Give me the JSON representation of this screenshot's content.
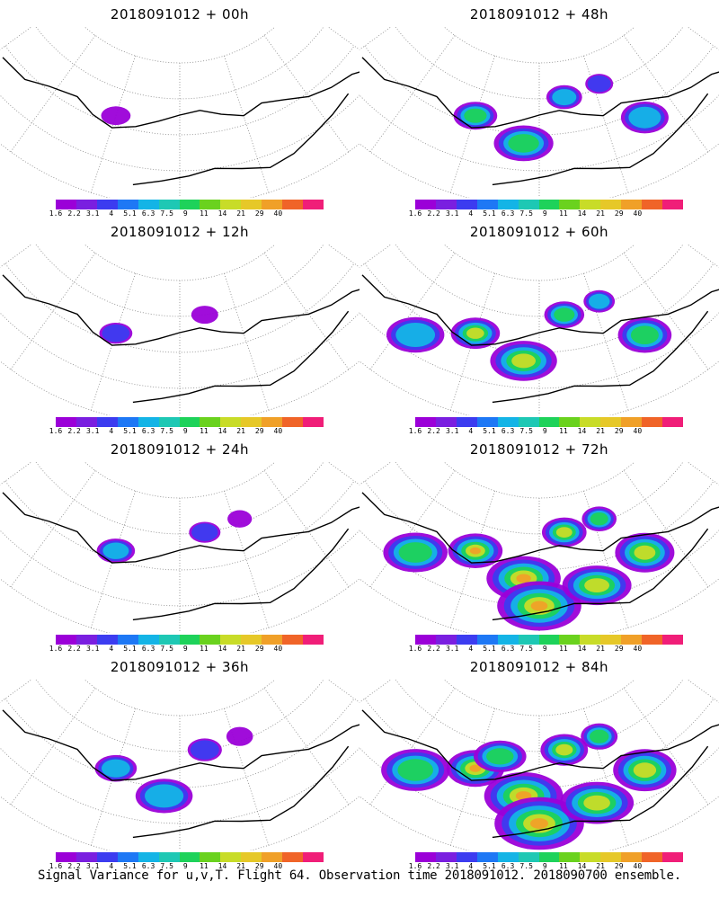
{
  "colorbar": {
    "labels": [
      "1.6",
      "2.2",
      "3.1",
      "4",
      "5.1",
      "6.3",
      "7.5",
      "9",
      "11",
      "14",
      "21",
      "29",
      "40"
    ],
    "colors": [
      "#9b00d8",
      "#7a1fe0",
      "#3c3cf0",
      "#1e78f5",
      "#14b4e6",
      "#1ec8b4",
      "#1ed25a",
      "#6ad21e",
      "#c8dc28",
      "#e6c828",
      "#f0a028",
      "#f06428",
      "#f01e78"
    ]
  },
  "panels": [
    {
      "title": "2018091012 + 00h",
      "coverage": 0.05
    },
    {
      "title": "2018091012 + 48h",
      "coverage": 0.45
    },
    {
      "title": "2018091012 + 12h",
      "coverage": 0.15
    },
    {
      "title": "2018091012 + 60h",
      "coverage": 0.6
    },
    {
      "title": "2018091012 + 24h",
      "coverage": 0.3
    },
    {
      "title": "2018091012 + 72h",
      "coverage": 0.75
    },
    {
      "title": "2018091012 + 36h",
      "coverage": 0.4
    },
    {
      "title": "2018091012 + 84h",
      "coverage": 0.85
    }
  ],
  "footer": "Signal Variance for u,v,T. Flight 64. Observation time 2018091012. 2018090700 ensemble."
}
